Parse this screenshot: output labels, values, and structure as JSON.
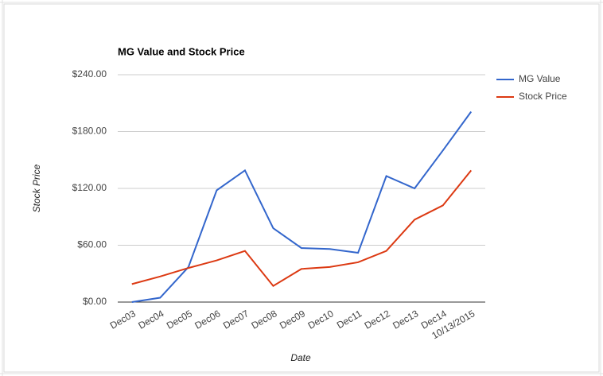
{
  "chart_data": {
    "type": "line",
    "title": "MG Value and Stock Price",
    "x_label": "Date",
    "y_label": "Stock Price",
    "categories": [
      "Dec03",
      "Dec04",
      "Dec05",
      "Dec06",
      "Dec07",
      "Dec08",
      "Dec09",
      "Dec10",
      "Dec11",
      "Dec12",
      "Dec13",
      "Dec14",
      "10/13/2015"
    ],
    "series": [
      {
        "name": "MG Value",
        "color": "#3366cc",
        "values": [
          0,
          4.6,
          37,
          118,
          139,
          78,
          57,
          56,
          52,
          133,
          120,
          160,
          201
        ]
      },
      {
        "name": "Stock Price",
        "color": "#dc3912",
        "values": [
          19,
          27,
          36,
          44,
          54,
          17,
          35,
          37,
          42,
          54,
          87,
          102,
          139
        ]
      }
    ],
    "ylim": [
      0,
      240
    ],
    "yticks": [
      {
        "value": 0,
        "label": "$0.00"
      },
      {
        "value": 60,
        "label": "$60.00"
      },
      {
        "value": 120,
        "label": "$120.00"
      },
      {
        "value": 180,
        "label": "$180.00"
      },
      {
        "value": 240,
        "label": "$240.00"
      }
    ],
    "grid": true,
    "legend": "right"
  }
}
